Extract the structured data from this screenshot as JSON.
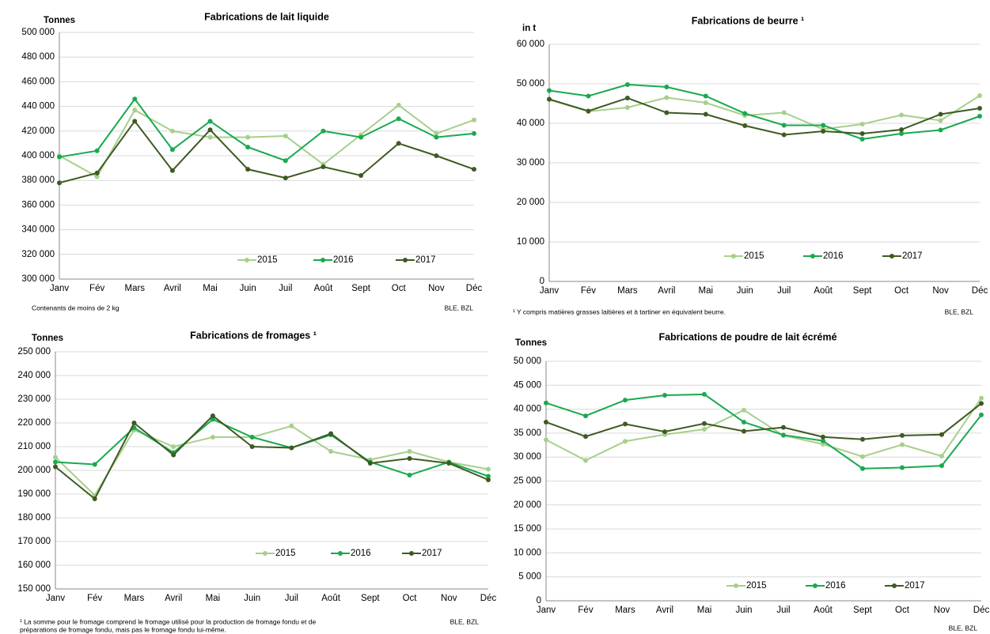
{
  "chart_data": [
    {
      "type": "line",
      "title": "Fabrications de lait liquide",
      "y_label": "Tonnes",
      "note": [
        "Contenants de moins de 2 kg"
      ],
      "source": "BLE, BZL",
      "categories": [
        "Janv",
        "Fév",
        "Mars",
        "Avril",
        "Mai",
        "Juin",
        "Juil",
        "Août",
        "Sept",
        "Oct",
        "Nov",
        "Déc"
      ],
      "ylim": [
        300000,
        500000
      ],
      "yticks": [
        {
          "value": 300000,
          "label": "300 000"
        },
        {
          "value": 320000,
          "label": "320 000"
        },
        {
          "value": 340000,
          "label": "340 000"
        },
        {
          "value": 360000,
          "label": "360 000"
        },
        {
          "value": 380000,
          "label": "380 000"
        },
        {
          "value": 400000,
          "label": "400 000"
        },
        {
          "value": 420000,
          "label": "420 000"
        },
        {
          "value": 440000,
          "label": "440 000"
        },
        {
          "value": 460000,
          "label": "460 000"
        },
        {
          "value": 480000,
          "label": "480 000"
        },
        {
          "value": 500000,
          "label": "500 000"
        }
      ],
      "grid": true,
      "series": [
        {
          "name": "2015",
          "color": "#a6d08a",
          "values": [
            400000,
            383000,
            437000,
            420000,
            415000,
            415000,
            416000,
            393000,
            417000,
            441000,
            418000,
            429000
          ]
        },
        {
          "name": "2016",
          "color": "#19a94f",
          "values": [
            399000,
            404000,
            446000,
            405000,
            428000,
            407000,
            396000,
            420000,
            415000,
            430000,
            415000,
            418000
          ]
        },
        {
          "name": "2017",
          "color": "#3e5a22",
          "values": [
            378000,
            386000,
            428000,
            388000,
            421000,
            389000,
            382000,
            391000,
            384000,
            410000,
            400000,
            389000
          ]
        }
      ]
    },
    {
      "type": "line",
      "title": "Fabrications de beurre ¹",
      "y_label": "in t",
      "note": [
        "¹ Y compris matières grasses laitières et à tartiner en équivalent beurre."
      ],
      "source": "BLE, BZL",
      "categories": [
        "Janv",
        "Fév",
        "Mars",
        "Avril",
        "Mai",
        "Juin",
        "Juil",
        "Août",
        "Sept",
        "Oct",
        "Nov",
        "Déc"
      ],
      "ylim": [
        0,
        60000
      ],
      "yticks": [
        0,
        {
          "value": 10000,
          "label": "10 000"
        },
        {
          "value": 20000,
          "label": "20 000"
        },
        {
          "value": 30000,
          "label": "30 000"
        },
        {
          "value": 40000,
          "label": "40 000"
        },
        {
          "value": 50000,
          "label": "50 000"
        },
        {
          "value": 60000,
          "label": "60 000"
        }
      ],
      "grid": true,
      "series": [
        {
          "name": "2015",
          "color": "#a6d08a",
          "values": [
            46000,
            43000,
            44000,
            46500,
            45200,
            42000,
            42700,
            38500,
            39800,
            42100,
            40700,
            47000
          ]
        },
        {
          "name": "2016",
          "color": "#19a94f",
          "values": [
            48300,
            46900,
            49800,
            49200,
            46900,
            42500,
            39500,
            39500,
            36000,
            37400,
            38300,
            41800
          ]
        },
        {
          "name": "2017",
          "color": "#3e5a22",
          "values": [
            46100,
            43100,
            46400,
            42700,
            42300,
            39400,
            37100,
            38000,
            37400,
            38400,
            42300,
            43800
          ]
        }
      ]
    },
    {
      "type": "line",
      "title": "Fabrications de fromages ¹",
      "y_label": "Tonnes",
      "note": [
        "¹ La somme pour le fromage comprend le fromage utilisé pour la production de fromage fondu et de",
        "préparations de fromage fondu, mais pas le fromage fondu lui-même."
      ],
      "source": "BLE, BZL",
      "categories": [
        "Janv",
        "Fév",
        "Mars",
        "Avril",
        "Mai",
        "Juin",
        "Juil",
        "Août",
        "Sept",
        "Oct",
        "Nov",
        "Déc"
      ],
      "ylim": [
        150000,
        250000
      ],
      "yticks": [
        {
          "value": 150000,
          "label": "150 000"
        },
        {
          "value": 160000,
          "label": "160 000"
        },
        {
          "value": 170000,
          "label": "170 000"
        },
        {
          "value": 180000,
          "label": "180 000"
        },
        {
          "value": 190000,
          "label": "190 000"
        },
        {
          "value": 200000,
          "label": "200 000"
        },
        {
          "value": 210000,
          "label": "210 000"
        },
        {
          "value": 220000,
          "label": "220 000"
        },
        {
          "value": 230000,
          "label": "230 000"
        },
        {
          "value": 240000,
          "label": "240 000"
        },
        {
          "value": 250000,
          "label": "250 000"
        }
      ],
      "grid": true,
      "series": [
        {
          "name": "2015",
          "color": "#a6d08a",
          "values": [
            205500,
            189500,
            217000,
            210000,
            214000,
            214000,
            218700,
            208000,
            204500,
            208000,
            203500,
            200500
          ]
        },
        {
          "name": "2016",
          "color": "#19a94f",
          "values": [
            203500,
            202500,
            218000,
            207500,
            221500,
            214000,
            209500,
            215000,
            203500,
            198000,
            203500,
            197500
          ]
        },
        {
          "name": "2017",
          "color": "#3e5a22",
          "values": [
            201500,
            188000,
            220000,
            206500,
            223000,
            210000,
            209500,
            215500,
            203000,
            205000,
            203000,
            196000
          ]
        }
      ]
    },
    {
      "type": "line",
      "title": "Fabrications de poudre de lait écrémé",
      "y_label": "Tonnes",
      "source": "BLE, BZL",
      "categories": [
        "Janv",
        "Fév",
        "Mars",
        "Avril",
        "Mai",
        "Juin",
        "Juil",
        "Août",
        "Sept",
        "Oct",
        "Nov",
        "Déc"
      ],
      "ylim": [
        0,
        50000
      ],
      "yticks": [
        0,
        {
          "value": 5000,
          "label": "5 000"
        },
        {
          "value": 10000,
          "label": "10 000"
        },
        {
          "value": 15000,
          "label": "15 000"
        },
        {
          "value": 20000,
          "label": "20 000"
        },
        {
          "value": 25000,
          "label": "25 000"
        },
        {
          "value": 30000,
          "label": "30 000"
        },
        {
          "value": 35000,
          "label": "35 000"
        },
        {
          "value": 40000,
          "label": "40 000"
        },
        {
          "value": 45000,
          "label": "45 000"
        },
        {
          "value": 50000,
          "label": "50 000"
        }
      ],
      "grid": true,
      "series": [
        {
          "name": "2015",
          "color": "#a6d08a",
          "values": [
            33600,
            29300,
            33300,
            34700,
            35800,
            39800,
            34500,
            32700,
            30100,
            32600,
            30200,
            42300
          ]
        },
        {
          "name": "2016",
          "color": "#19a94f",
          "values": [
            41300,
            38600,
            41900,
            42900,
            43100,
            37300,
            34600,
            33400,
            27600,
            27800,
            28200,
            38800
          ]
        },
        {
          "name": "2017",
          "color": "#3e5a22",
          "values": [
            37300,
            34300,
            36900,
            35300,
            37000,
            35400,
            36200,
            34200,
            33700,
            34500,
            34700,
            41200
          ]
        }
      ]
    }
  ]
}
